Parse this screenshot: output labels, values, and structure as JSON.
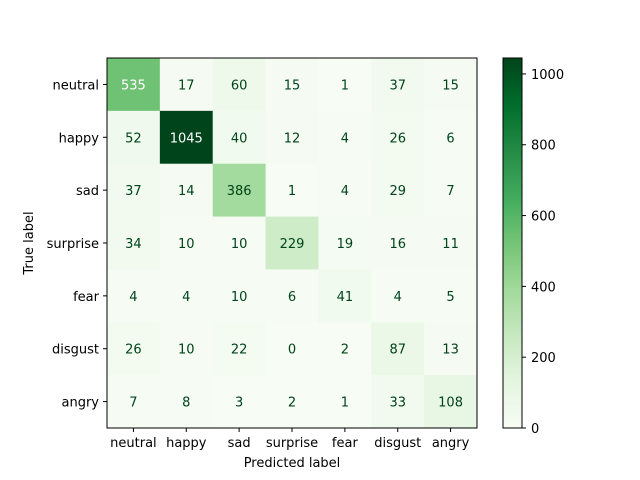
{
  "chart_data": {
    "type": "heatmap",
    "title": "",
    "xlabel": "Predicted label",
    "ylabel": "True label",
    "x_categories": [
      "neutral",
      "happy",
      "sad",
      "surprise",
      "fear",
      "disgust",
      "angry"
    ],
    "y_categories": [
      "neutral",
      "happy",
      "sad",
      "surprise",
      "fear",
      "disgust",
      "angry"
    ],
    "values": [
      [
        535,
        17,
        60,
        15,
        1,
        37,
        15
      ],
      [
        52,
        1045,
        40,
        12,
        4,
        26,
        6
      ],
      [
        37,
        14,
        386,
        1,
        4,
        29,
        7
      ],
      [
        34,
        10,
        10,
        229,
        19,
        16,
        11
      ],
      [
        4,
        4,
        10,
        6,
        41,
        4,
        5
      ],
      [
        26,
        10,
        22,
        0,
        2,
        87,
        13
      ],
      [
        7,
        8,
        3,
        2,
        1,
        33,
        108
      ]
    ],
    "colormap": "Greens",
    "color_range": [
      0,
      1045
    ],
    "colorbar_ticks": [
      0,
      200,
      400,
      600,
      800,
      1000
    ],
    "grid": false
  }
}
